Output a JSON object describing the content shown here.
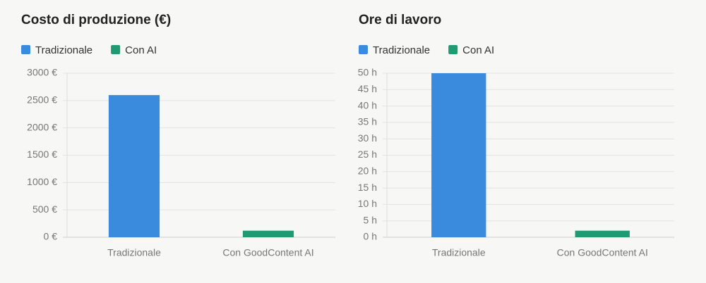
{
  "chart_data": [
    {
      "type": "bar",
      "title": "Costo di produzione (€)",
      "categories": [
        "Tradizionale",
        "Con GoodContent AI"
      ],
      "series": [
        {
          "name": "Tradizionale",
          "color": "#3a8ade",
          "values": [
            2600,
            null
          ]
        },
        {
          "name": "Con AI",
          "color": "#1f9a72",
          "values": [
            null,
            120
          ]
        }
      ],
      "ylim": [
        0,
        3000
      ],
      "yticks": [
        {
          "value": 0,
          "label": "0 €"
        },
        {
          "value": 500,
          "label": "500 €"
        },
        {
          "value": 1000,
          "label": "1000 €"
        },
        {
          "value": 1500,
          "label": "1500 €"
        },
        {
          "value": 2000,
          "label": "2000 €"
        },
        {
          "value": 2500,
          "label": "2500 €"
        },
        {
          "value": 3000,
          "label": "3000 €"
        }
      ],
      "grid": true
    },
    {
      "type": "bar",
      "title": "Ore di lavoro",
      "categories": [
        "Tradizionale",
        "Con GoodContent AI"
      ],
      "series": [
        {
          "name": "Tradizionale",
          "color": "#3a8ade",
          "values": [
            50,
            null
          ]
        },
        {
          "name": "Con AI",
          "color": "#1f9a72",
          "values": [
            null,
            2
          ]
        }
      ],
      "ylim": [
        0,
        50
      ],
      "yticks": [
        {
          "value": 0,
          "label": "0 h"
        },
        {
          "value": 5,
          "label": "5 h"
        },
        {
          "value": 10,
          "label": "10 h"
        },
        {
          "value": 15,
          "label": "15 h"
        },
        {
          "value": 20,
          "label": "20 h"
        },
        {
          "value": 25,
          "label": "25 h"
        },
        {
          "value": 30,
          "label": "30 h"
        },
        {
          "value": 35,
          "label": "35 h"
        },
        {
          "value": 40,
          "label": "40 h"
        },
        {
          "value": 45,
          "label": "45 h"
        },
        {
          "value": 50,
          "label": "50 h"
        }
      ],
      "grid": true
    }
  ]
}
